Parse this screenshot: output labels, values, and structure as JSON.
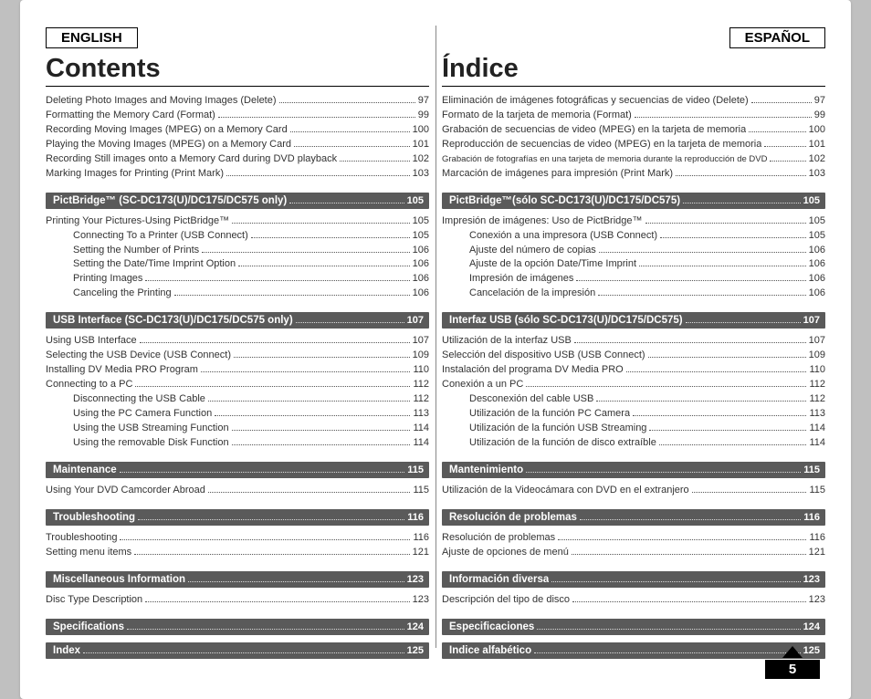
{
  "page_number": "5",
  "left": {
    "lang": "ENGLISH",
    "heading": "Contents",
    "groups": [
      {
        "type": "lines",
        "items": [
          {
            "t": "Deleting Photo Images and Moving Images (Delete)",
            "p": "97",
            "i": 0
          },
          {
            "t": "Formatting the Memory Card (Format)",
            "p": "99",
            "i": 0
          },
          {
            "t": "Recording Moving Images (MPEG) on a Memory Card",
            "p": "100",
            "i": 0
          },
          {
            "t": "Playing the Moving Images (MPEG) on a Memory Card",
            "p": "101",
            "i": 0
          },
          {
            "t": "Recording Still images onto a Memory Card during DVD playback",
            "p": "102",
            "i": 0
          },
          {
            "t": "Marking Images for Printing (Print Mark)",
            "p": "103",
            "i": 0
          }
        ]
      },
      {
        "type": "bar",
        "t": "PictBridge™ (SC-DC173(U)/DC175/DC575 only)",
        "p": "105"
      },
      {
        "type": "lines",
        "items": [
          {
            "t": "Printing Your Pictures-Using PictBridge™",
            "p": "105",
            "i": 0
          },
          {
            "t": "Connecting To a Printer (USB Connect)",
            "p": "105",
            "i": 1
          },
          {
            "t": "Setting the Number of Prints",
            "p": "106",
            "i": 1
          },
          {
            "t": "Setting the Date/Time Imprint Option",
            "p": "106",
            "i": 1
          },
          {
            "t": "Printing Images",
            "p": "106",
            "i": 1
          },
          {
            "t": "Canceling the Printing",
            "p": "106",
            "i": 1
          }
        ]
      },
      {
        "type": "bar",
        "t": "USB Interface (SC-DC173(U)/DC175/DC575 only)",
        "p": "107"
      },
      {
        "type": "lines",
        "items": [
          {
            "t": "Using USB Interface",
            "p": "107",
            "i": 0
          },
          {
            "t": "Selecting the USB Device (USB Connect)",
            "p": "109",
            "i": 0
          },
          {
            "t": "Installing DV Media PRO Program",
            "p": "110",
            "i": 0
          },
          {
            "t": "Connecting to a PC",
            "p": "112",
            "i": 0
          },
          {
            "t": "Disconnecting the USB Cable",
            "p": "112",
            "i": 1
          },
          {
            "t": "Using the PC Camera Function",
            "p": "113",
            "i": 1
          },
          {
            "t": "Using the USB Streaming Function",
            "p": "114",
            "i": 1
          },
          {
            "t": "Using the removable Disk Function",
            "p": "114",
            "i": 1
          }
        ]
      },
      {
        "type": "bar",
        "t": "Maintenance",
        "p": "115"
      },
      {
        "type": "lines",
        "items": [
          {
            "t": "Using Your DVD Camcorder Abroad",
            "p": "115",
            "i": 0
          }
        ]
      },
      {
        "type": "bar",
        "t": "Troubleshooting",
        "p": "116"
      },
      {
        "type": "lines",
        "items": [
          {
            "t": "Troubleshooting",
            "p": "116",
            "i": 0
          },
          {
            "t": "Setting menu items",
            "p": "121",
            "i": 0
          }
        ]
      },
      {
        "type": "bar",
        "t": "Miscellaneous Information",
        "p": "123"
      },
      {
        "type": "lines",
        "items": [
          {
            "t": "Disc Type Description",
            "p": "123",
            "i": 0
          }
        ]
      },
      {
        "type": "bar",
        "t": "Specifications",
        "p": "124"
      },
      {
        "type": "bar",
        "t": "Index",
        "p": "125"
      }
    ]
  },
  "right": {
    "lang": "ESPAÑOL",
    "heading": "Índice",
    "groups": [
      {
        "type": "lines",
        "items": [
          {
            "t": "Eliminación de imágenes fotográficas y secuencias de video (Delete)",
            "p": "97",
            "i": 0
          },
          {
            "t": "Formato de la tarjeta de memoria (Format)",
            "p": "99",
            "i": 0
          },
          {
            "t": "Grabación de secuencias de video (MPEG) en la tarjeta de memoria",
            "p": "100",
            "i": 0
          },
          {
            "t": "Reproducción de secuencias de video (MPEG) en la tarjeta de memoria",
            "p": "101",
            "i": 0
          },
          {
            "t": "Grabación de fotografías en una tarjeta de memoria durante la reproducción de DVD",
            "p": "102",
            "i": 0,
            "small": true
          },
          {
            "t": "Marcación de imágenes para impresión (Print Mark)",
            "p": "103",
            "i": 0
          }
        ]
      },
      {
        "type": "bar",
        "t": "PictBridge™(sólo SC-DC173(U)/DC175/DC575)",
        "p": "105"
      },
      {
        "type": "lines",
        "items": [
          {
            "t": "Impresión de imágenes: Uso de PictBridge™",
            "p": "105",
            "i": 0
          },
          {
            "t": "Conexión a una impresora (USB Connect)",
            "p": "105",
            "i": 1
          },
          {
            "t": "Ajuste del número de copias",
            "p": "106",
            "i": 1
          },
          {
            "t": "Ajuste de la opción Date/Time Imprint",
            "p": "106",
            "i": 1
          },
          {
            "t": "Impresión de imágenes",
            "p": "106",
            "i": 1
          },
          {
            "t": "Cancelación de la impresión",
            "p": "106",
            "i": 1
          }
        ]
      },
      {
        "type": "bar",
        "t": "Interfaz USB (sólo SC-DC173(U)/DC175/DC575)",
        "p": "107"
      },
      {
        "type": "lines",
        "items": [
          {
            "t": "Utilización de la interfaz USB",
            "p": "107",
            "i": 0
          },
          {
            "t": "Selección del dispositivo USB (USB Connect)",
            "p": "109",
            "i": 0
          },
          {
            "t": "Instalación del programa DV Media PRO",
            "p": "110",
            "i": 0
          },
          {
            "t": "Conexión a un PC",
            "p": "112",
            "i": 0
          },
          {
            "t": "Desconexión del cable USB",
            "p": "112",
            "i": 1
          },
          {
            "t": "Utilización de la función PC Camera",
            "p": "113",
            "i": 1
          },
          {
            "t": "Utilización de la función USB Streaming",
            "p": "114",
            "i": 1
          },
          {
            "t": "Utilización de la función de disco extraíble",
            "p": "114",
            "i": 1
          }
        ]
      },
      {
        "type": "bar",
        "t": "Mantenimiento",
        "p": "115"
      },
      {
        "type": "lines",
        "items": [
          {
            "t": "Utilización de la Videocámara con DVD en el extranjero",
            "p": "115",
            "i": 0
          }
        ]
      },
      {
        "type": "bar",
        "t": "Resolución de problemas",
        "p": "116"
      },
      {
        "type": "lines",
        "items": [
          {
            "t": "Resolución de problemas",
            "p": "116",
            "i": 0
          },
          {
            "t": "Ajuste de opciones de menú",
            "p": "121",
            "i": 0
          }
        ]
      },
      {
        "type": "bar",
        "t": "Información diversa",
        "p": "123"
      },
      {
        "type": "lines",
        "items": [
          {
            "t": "Descripción del tipo de disco",
            "p": "123",
            "i": 0
          }
        ]
      },
      {
        "type": "bar",
        "t": "Especificaciones",
        "p": "124"
      },
      {
        "type": "bar",
        "t": "Índice alfabético",
        "p": "125"
      }
    ]
  }
}
